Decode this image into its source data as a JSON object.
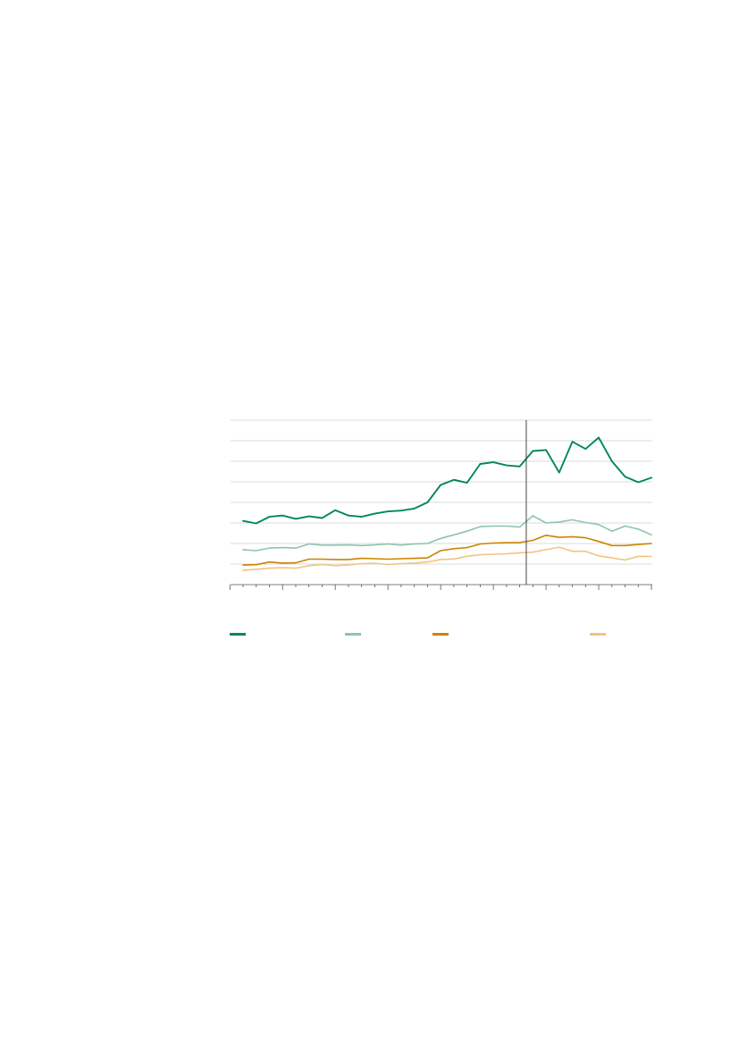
{
  "chart_data": {
    "type": "line",
    "title": "",
    "xlabel": "",
    "ylabel": "",
    "grid": true,
    "ylim": [
      0,
      8
    ],
    "y_gridlines": [
      1,
      2,
      3,
      4,
      5,
      6,
      7,
      8
    ],
    "x_count": 32,
    "divider_index": 21.5,
    "series": [
      {
        "color": "#00875f",
        "values": [
          3.1,
          2.98,
          3.3,
          3.36,
          3.2,
          3.32,
          3.24,
          3.62,
          3.36,
          3.3,
          3.45,
          3.56,
          3.6,
          3.7,
          4.0,
          4.85,
          5.1,
          4.95,
          5.87,
          5.95,
          5.8,
          5.75,
          6.5,
          6.55,
          5.45,
          6.95,
          6.6,
          7.15,
          6.0,
          5.25,
          4.98,
          5.2
        ]
      },
      {
        "color": "#8dc4ac",
        "values": [
          1.7,
          1.65,
          1.78,
          1.8,
          1.78,
          1.98,
          1.92,
          1.92,
          1.93,
          1.9,
          1.93,
          1.98,
          1.92,
          1.98,
          2.0,
          2.25,
          2.42,
          2.6,
          2.82,
          2.85,
          2.85,
          2.8,
          3.35,
          3.0,
          3.05,
          3.15,
          3.02,
          2.92,
          2.6,
          2.85,
          2.7,
          2.42
        ]
      },
      {
        "color": "#cc8400",
        "values": [
          0.95,
          0.97,
          1.1,
          1.05,
          1.06,
          1.24,
          1.24,
          1.22,
          1.22,
          1.28,
          1.26,
          1.24,
          1.26,
          1.28,
          1.3,
          1.65,
          1.75,
          1.8,
          1.98,
          2.02,
          2.04,
          2.05,
          2.15,
          2.4,
          2.3,
          2.33,
          2.28,
          2.1,
          1.9,
          1.9,
          1.95,
          2.0
        ]
      },
      {
        "color": "#f2c382",
        "values": [
          0.7,
          0.75,
          0.8,
          0.82,
          0.8,
          0.92,
          0.98,
          0.92,
          0.96,
          1.02,
          1.04,
          0.98,
          1.02,
          1.05,
          1.1,
          1.22,
          1.25,
          1.38,
          1.45,
          1.48,
          1.5,
          1.55,
          1.58,
          1.7,
          1.82,
          1.62,
          1.62,
          1.4,
          1.3,
          1.2,
          1.38,
          1.37
        ]
      }
    ]
  }
}
